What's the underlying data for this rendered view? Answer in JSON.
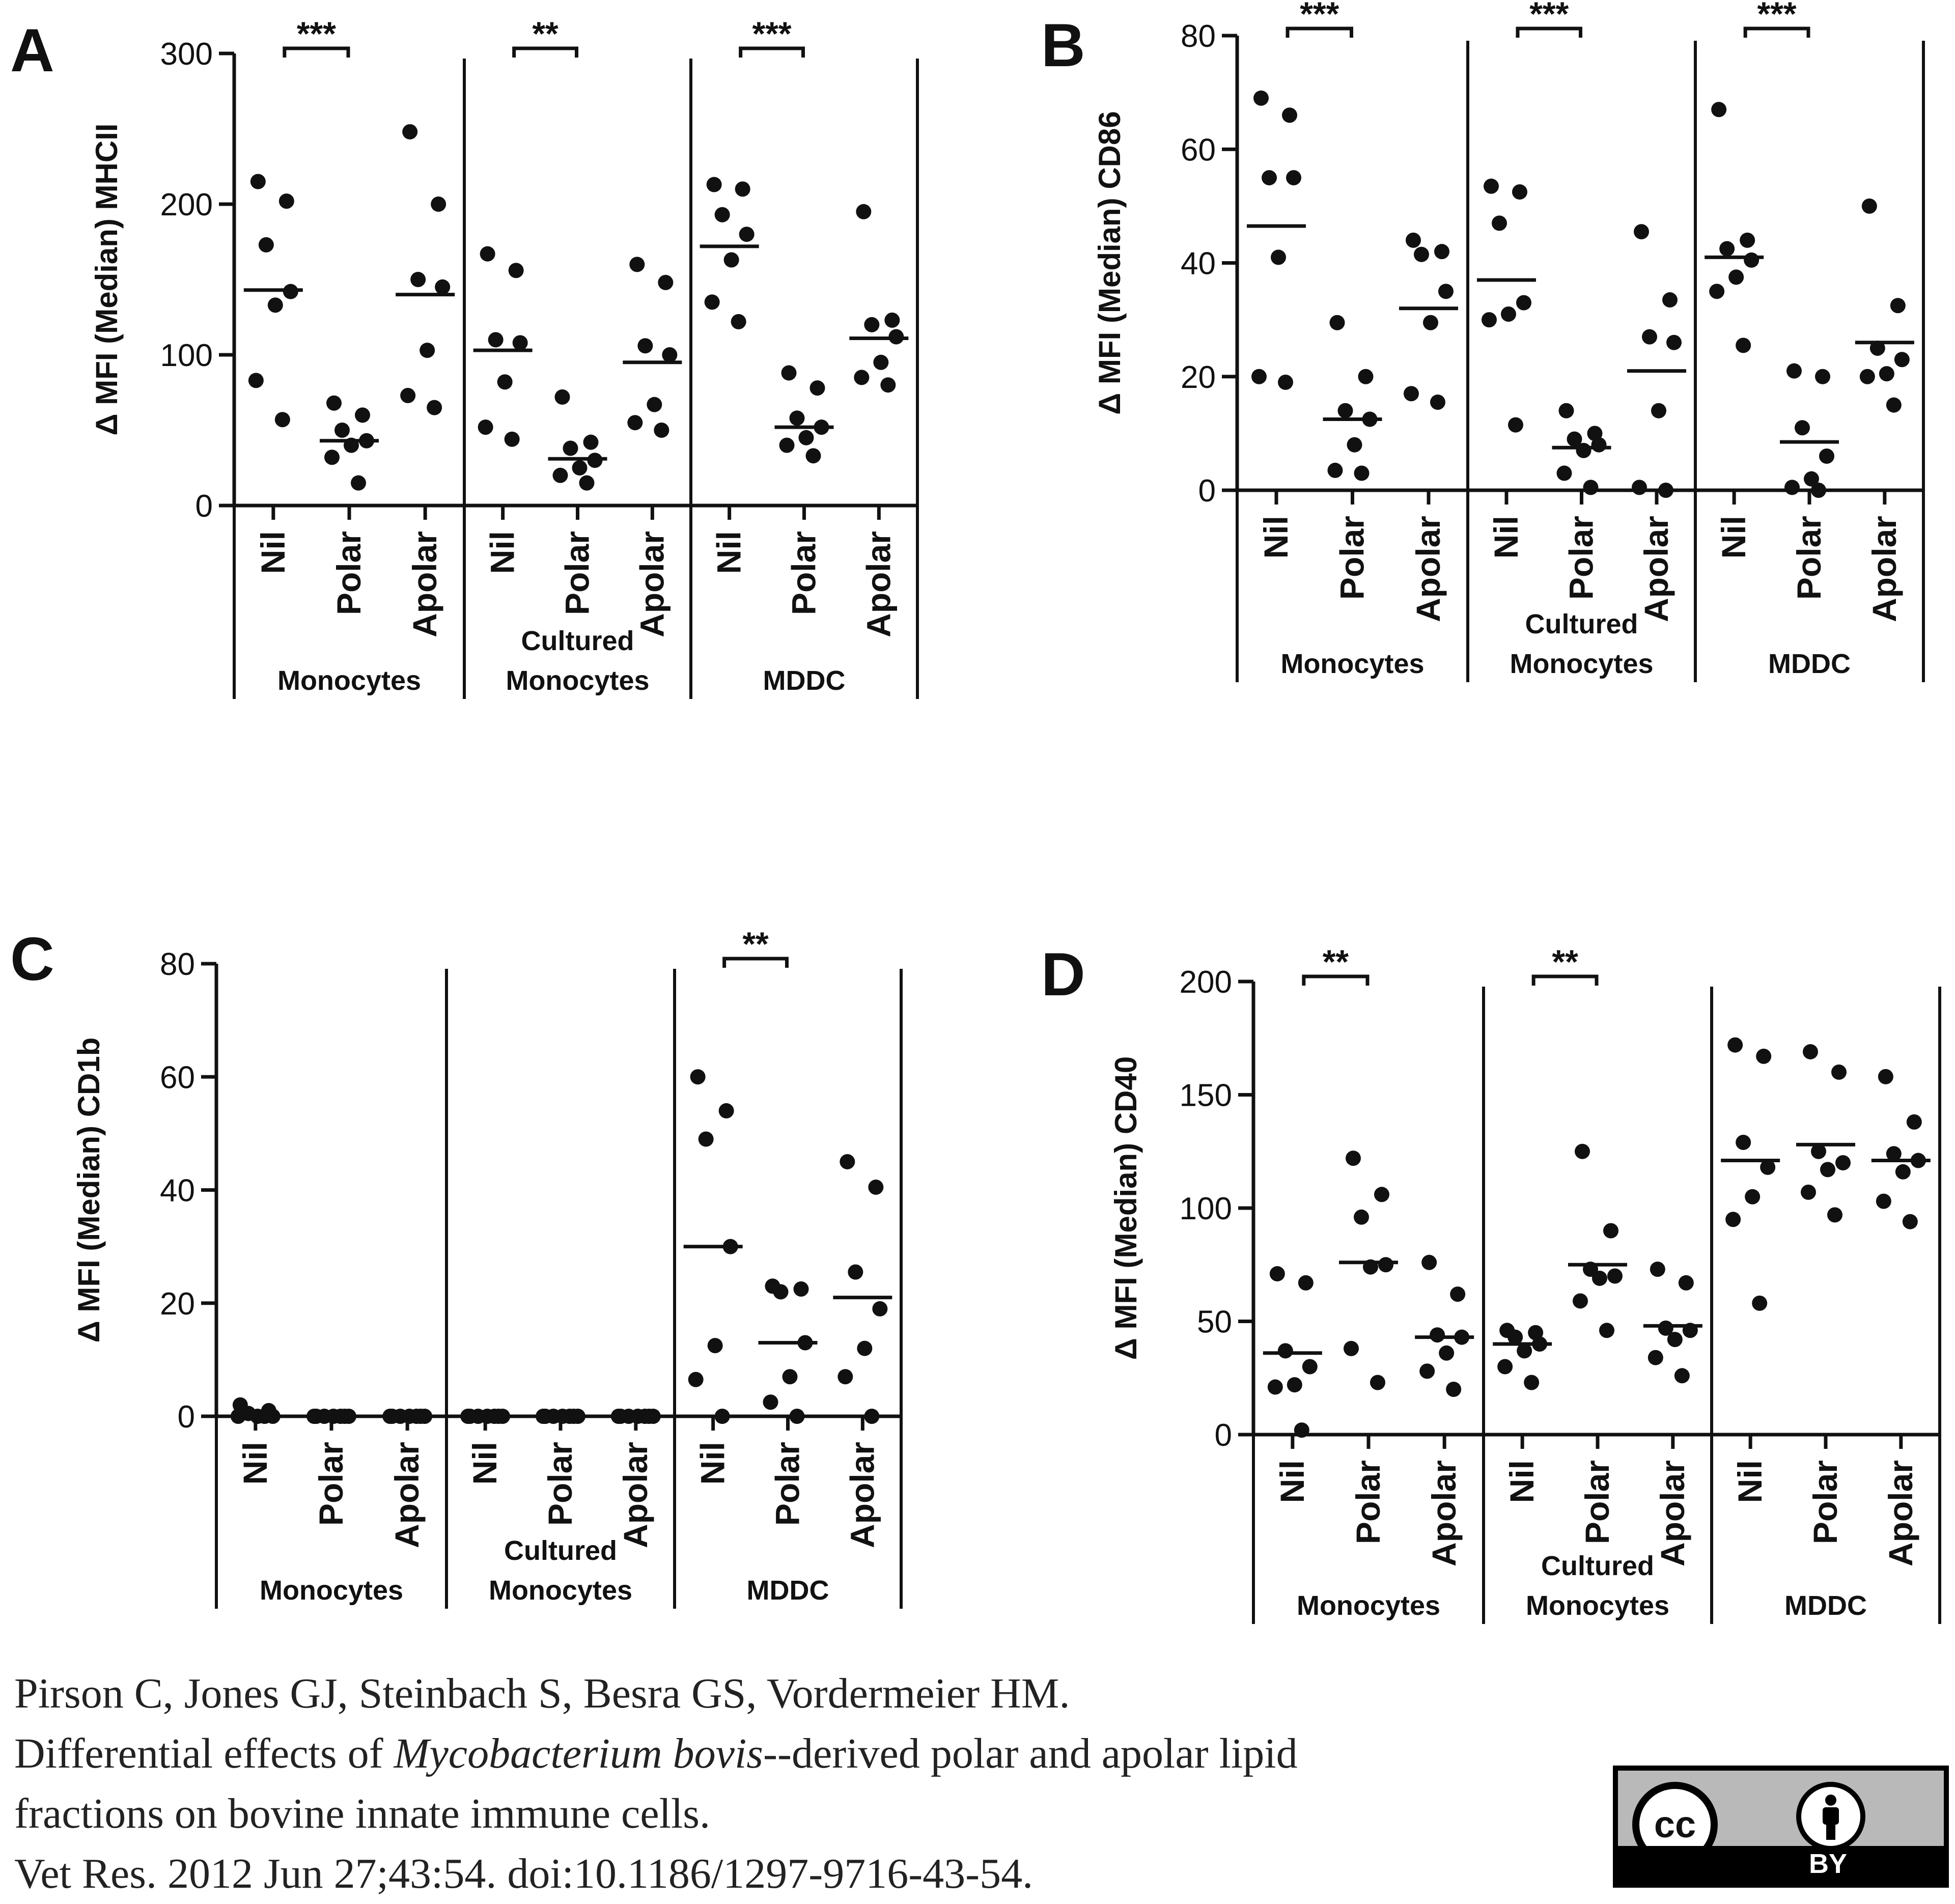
{
  "chart_data": [
    {
      "panel_label": "A",
      "type": "scatter",
      "ylabel": "Δ MFI (Median) MHCII",
      "ylim": [
        0,
        300
      ],
      "yticks": [
        0,
        100,
        200,
        300
      ],
      "groups": [
        {
          "label": "Monocytes",
          "significance": "***",
          "conditions": [
            {
              "label": "Nil",
              "values": [
                215,
                202,
                173,
                142,
                133,
                83,
                57
              ],
              "median": 143
            },
            {
              "label": "Polar",
              "values": [
                68,
                60,
                50,
                43,
                40,
                32,
                15
              ],
              "median": 43
            },
            {
              "label": "Apolar",
              "values": [
                248,
                200,
                150,
                145,
                103,
                73,
                65
              ],
              "median": 140
            }
          ]
        },
        {
          "label": "Cultured Monocytes",
          "significance": "**",
          "conditions": [
            {
              "label": "Nil",
              "values": [
                167,
                156,
                110,
                108,
                82,
                52,
                44
              ],
              "median": 103
            },
            {
              "label": "Polar",
              "values": [
                72,
                42,
                38,
                30,
                25,
                20,
                15
              ],
              "median": 31
            },
            {
              "label": "Apolar",
              "values": [
                160,
                148,
                106,
                100,
                67,
                55,
                50
              ],
              "median": 95
            }
          ]
        },
        {
          "label": "MDDC",
          "significance": "***",
          "conditions": [
            {
              "label": "Nil",
              "values": [
                213,
                210,
                193,
                180,
                163,
                135,
                122
              ],
              "median": 172
            },
            {
              "label": "Polar",
              "values": [
                88,
                78,
                58,
                52,
                45,
                40,
                33
              ],
              "median": 52
            },
            {
              "label": "Apolar",
              "values": [
                195,
                123,
                120,
                112,
                95,
                85,
                80
              ],
              "median": 111
            }
          ]
        }
      ]
    },
    {
      "panel_label": "B",
      "type": "scatter",
      "ylabel": "Δ MFI (Median) CD86",
      "ylim": [
        0,
        80
      ],
      "yticks": [
        0,
        20,
        40,
        60,
        80
      ],
      "groups": [
        {
          "label": "Monocytes",
          "significance": "***",
          "conditions": [
            {
              "label": "Nil",
              "values": [
                69,
                66,
                55,
                55,
                41,
                20,
                19
              ],
              "median": 46.5
            },
            {
              "label": "Polar",
              "values": [
                29.5,
                20,
                14,
                12.5,
                8,
                3.5,
                3
              ],
              "median": 12.5
            },
            {
              "label": "Apolar",
              "values": [
                44,
                42,
                41.5,
                35,
                29.5,
                17,
                15.5
              ],
              "median": 32
            }
          ]
        },
        {
          "label": "Cultured Monocytes",
          "significance": "***",
          "conditions": [
            {
              "label": "Nil",
              "values": [
                53.5,
                52.5,
                47,
                33,
                31,
                30,
                11.5
              ],
              "median": 37
            },
            {
              "label": "Polar",
              "values": [
                14,
                10,
                9,
                8,
                7,
                3,
                0.5
              ],
              "median": 7.5
            },
            {
              "label": "Apolar",
              "values": [
                45.5,
                33.5,
                27,
                26,
                14,
                0.5,
                0
              ],
              "median": 21
            }
          ]
        },
        {
          "label": "MDDC",
          "significance": "***",
          "conditions": [
            {
              "label": "Nil",
              "values": [
                67,
                44,
                42.5,
                40.5,
                37.5,
                35,
                25.5
              ],
              "median": 41
            },
            {
              "label": "Polar",
              "values": [
                21,
                20,
                11,
                6,
                2,
                0.5,
                0
              ],
              "median": 8.5
            },
            {
              "label": "Apolar",
              "values": [
                50,
                32.5,
                25,
                23,
                20.5,
                20,
                15
              ],
              "median": 26
            }
          ]
        }
      ]
    },
    {
      "panel_label": "C",
      "type": "scatter",
      "ylabel": "Δ MFI (Median) CD1b",
      "ylim": [
        0,
        80
      ],
      "yticks": [
        0,
        20,
        40,
        60,
        80
      ],
      "groups": [
        {
          "label": "Monocytes",
          "significance": "",
          "conditions": [
            {
              "label": "Nil",
              "values": [
                2,
                1,
                0.5,
                0,
                0,
                0,
                0
              ],
              "median": 0
            },
            {
              "label": "Polar",
              "values": [
                0,
                0,
                0,
                0,
                0,
                0,
                0
              ],
              "median": 0
            },
            {
              "label": "Apolar",
              "values": [
                0,
                0,
                0,
                0,
                0,
                0,
                0
              ],
              "median": 0
            }
          ]
        },
        {
          "label": "Cultured Monocytes",
          "significance": "",
          "conditions": [
            {
              "label": "Nil",
              "values": [
                0,
                0,
                0,
                0,
                0,
                0,
                0
              ],
              "median": 0
            },
            {
              "label": "Polar",
              "values": [
                0,
                0,
                0,
                0,
                0,
                0,
                0
              ],
              "median": 0
            },
            {
              "label": "Apolar",
              "values": [
                0,
                0,
                0,
                0,
                0,
                0,
                0
              ],
              "median": 0
            }
          ]
        },
        {
          "label": "MDDC",
          "significance": "**",
          "conditions": [
            {
              "label": "Nil",
              "values": [
                60,
                54,
                49,
                30,
                12.5,
                6.5,
                0
              ],
              "median": 30
            },
            {
              "label": "Polar",
              "values": [
                23,
                22.5,
                22,
                13,
                7,
                2.5,
                0
              ],
              "median": 13
            },
            {
              "label": "Apolar",
              "values": [
                45,
                40.5,
                25.5,
                19,
                12,
                7,
                0
              ],
              "median": 21
            }
          ]
        }
      ]
    },
    {
      "panel_label": "D",
      "type": "scatter",
      "ylabel": "Δ MFI (Median) CD40",
      "ylim": [
        0,
        200
      ],
      "yticks": [
        0,
        50,
        100,
        150,
        200
      ],
      "groups": [
        {
          "label": "Monocytes",
          "significance": "**",
          "conditions": [
            {
              "label": "Nil",
              "values": [
                71,
                67,
                37,
                30,
                22,
                21,
                2
              ],
              "median": 36
            },
            {
              "label": "Polar",
              "values": [
                122,
                106,
                96,
                75,
                74,
                38,
                23
              ],
              "median": 76
            },
            {
              "label": "Apolar",
              "values": [
                76,
                62,
                44,
                43,
                36,
                28,
                20
              ],
              "median": 43
            }
          ]
        },
        {
          "label": "Cultured Monocytes",
          "significance": "**",
          "conditions": [
            {
              "label": "Nil",
              "values": [
                46,
                45,
                43,
                40,
                37,
                30,
                23
              ],
              "median": 40
            },
            {
              "label": "Polar",
              "values": [
                125,
                90,
                73,
                70,
                69,
                59,
                46
              ],
              "median": 75
            },
            {
              "label": "Apolar",
              "values": [
                73,
                67,
                47,
                46,
                42,
                34,
                26
              ],
              "median": 48
            }
          ]
        },
        {
          "label": "MDDC",
          "significance": "",
          "conditions": [
            {
              "label": "Nil",
              "values": [
                172,
                167,
                129,
                118,
                105,
                95,
                58
              ],
              "median": 121
            },
            {
              "label": "Polar",
              "values": [
                169,
                160,
                125,
                120,
                117,
                107,
                97
              ],
              "median": 128
            },
            {
              "label": "Apolar",
              "values": [
                158,
                138,
                124,
                121,
                116,
                103,
                94
              ],
              "median": 121
            }
          ]
        }
      ]
    }
  ],
  "citation": {
    "line1": "Pirson C, Jones GJ, Steinbach S, Besra GS, Vordermeier HM.",
    "line2_before": "Differential effects of ",
    "line2_species": "Mycobacterium bovis",
    "line2_after": "--derived polar and apolar lipid",
    "line3": "fractions on bovine innate immune cells.",
    "line4": "Vet Res. 2012 Jun 27;43:54. doi:10.1186/1297-9716-43-54."
  },
  "license_badge": {
    "cc_text": "cc",
    "by_text": "BY",
    "icon": "person-attribution-icon"
  }
}
